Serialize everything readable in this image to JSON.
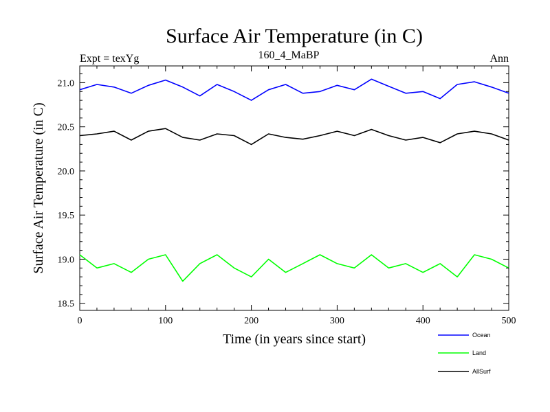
{
  "chart_data": {
    "type": "line",
    "title": "Surface Air Temperature (in C)",
    "subtitle_left": "Expt = texYg",
    "subtitle_center": "160_4_MaBP",
    "subtitle_right": "Ann",
    "xlabel": "Time (in years since start)",
    "ylabel": "Surface Air Temperature (in C)",
    "xlim": [
      0,
      500
    ],
    "ylim": [
      18.42,
      21.19
    ],
    "x_ticks": [
      0,
      100,
      200,
      300,
      400,
      500
    ],
    "x_tick_labels": [
      "0",
      "100",
      "200",
      "300",
      "400",
      "500"
    ],
    "y_ticks": [
      18.5,
      19.0,
      19.5,
      20.0,
      20.5,
      21.0
    ],
    "y_tick_labels": [
      "18.5",
      "19.0",
      "19.5",
      "20.0",
      "20.5",
      "21.0"
    ],
    "grid": false,
    "legend_placement": "below-right",
    "series": [
      {
        "name": "Ocean",
        "color": "#0000ff",
        "x": [
          0,
          20,
          40,
          60,
          80,
          100,
          120,
          140,
          160,
          180,
          200,
          220,
          240,
          260,
          280,
          300,
          320,
          340,
          360,
          380,
          400,
          420,
          440,
          460,
          480,
          500
        ],
        "values": [
          20.92,
          20.98,
          20.95,
          20.88,
          20.97,
          21.03,
          20.95,
          20.85,
          20.98,
          20.9,
          20.8,
          20.92,
          20.98,
          20.88,
          20.9,
          20.97,
          20.92,
          21.04,
          20.96,
          20.88,
          20.9,
          20.82,
          20.98,
          21.01,
          20.95,
          20.88
        ]
      },
      {
        "name": "Land",
        "color": "#00ff00",
        "x": [
          0,
          20,
          40,
          60,
          80,
          100,
          120,
          140,
          160,
          180,
          200,
          220,
          240,
          260,
          280,
          300,
          320,
          340,
          360,
          380,
          400,
          420,
          440,
          460,
          480,
          500
        ],
        "values": [
          19.05,
          18.9,
          18.95,
          18.85,
          19.0,
          19.05,
          18.75,
          18.95,
          19.05,
          18.9,
          18.8,
          19.0,
          18.85,
          18.95,
          19.05,
          18.95,
          18.9,
          19.05,
          18.9,
          18.95,
          18.85,
          18.95,
          18.8,
          19.05,
          19.0,
          18.9
        ]
      },
      {
        "name": "AllSurf",
        "color": "#000000",
        "x": [
          0,
          20,
          40,
          60,
          80,
          100,
          120,
          140,
          160,
          180,
          200,
          220,
          240,
          260,
          280,
          300,
          320,
          340,
          360,
          380,
          400,
          420,
          440,
          460,
          480,
          500
        ],
        "values": [
          20.4,
          20.42,
          20.45,
          20.35,
          20.45,
          20.48,
          20.38,
          20.35,
          20.42,
          20.4,
          20.3,
          20.42,
          20.38,
          20.36,
          20.4,
          20.45,
          20.4,
          20.47,
          20.4,
          20.35,
          20.38,
          20.32,
          20.42,
          20.45,
          20.42,
          20.35
        ]
      }
    ]
  }
}
